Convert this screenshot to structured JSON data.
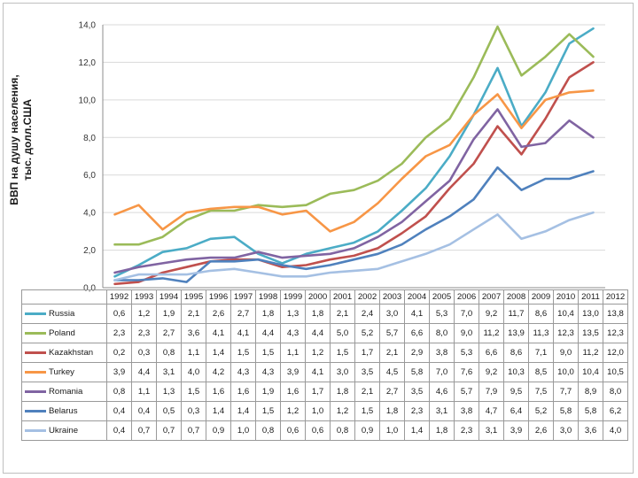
{
  "chart_data": {
    "type": "line",
    "title": "",
    "ylabel": "ВВП на душу населения, тыс. долл.США",
    "ylabel_lines": [
      "ВВП на душу населения,",
      "тыс. долл.США"
    ],
    "ylim": [
      0,
      14
    ],
    "yticks": [
      "0,0",
      "2,0",
      "4,0",
      "6,0",
      "8,0",
      "10,0",
      "12,0",
      "14,0"
    ],
    "grid": true,
    "legend": "table-below",
    "categories": [
      "1992",
      "1993",
      "1994",
      "1995",
      "1996",
      "1997",
      "1998",
      "1999",
      "2000",
      "2001",
      "2002",
      "2003",
      "2004",
      "2005",
      "2006",
      "2007",
      "2008",
      "2009",
      "2010",
      "2011",
      "2012"
    ],
    "series": [
      {
        "name": "Russia",
        "color": "#4bacc6",
        "values": [
          0.6,
          1.2,
          1.9,
          2.1,
          2.6,
          2.7,
          1.8,
          1.3,
          1.8,
          2.1,
          2.4,
          3.0,
          4.1,
          5.3,
          7.0,
          9.2,
          11.7,
          8.6,
          10.4,
          13.0,
          13.8
        ],
        "labels": [
          "0,6",
          "1,2",
          "1,9",
          "2,1",
          "2,6",
          "2,7",
          "1,8",
          "1,3",
          "1,8",
          "2,1",
          "2,4",
          "3,0",
          "4,1",
          "5,3",
          "7,0",
          "9,2",
          "11,7",
          "8,6",
          "10,4",
          "13,0",
          "13,8"
        ]
      },
      {
        "name": "Poland",
        "color": "#9bbb59",
        "values": [
          2.3,
          2.3,
          2.7,
          3.6,
          4.1,
          4.1,
          4.4,
          4.3,
          4.4,
          5.0,
          5.2,
          5.7,
          6.6,
          8.0,
          9.0,
          11.2,
          13.9,
          11.3,
          12.3,
          13.5,
          12.3
        ],
        "labels": [
          "2,3",
          "2,3",
          "2,7",
          "3,6",
          "4,1",
          "4,1",
          "4,4",
          "4,3",
          "4,4",
          "5,0",
          "5,2",
          "5,7",
          "6,6",
          "8,0",
          "9,0",
          "11,2",
          "13,9",
          "11,3",
          "12,3",
          "13,5",
          "12,3"
        ]
      },
      {
        "name": "Kazakhstan",
        "color": "#c0504d",
        "values": [
          0.2,
          0.3,
          0.8,
          1.1,
          1.4,
          1.5,
          1.5,
          1.1,
          1.2,
          1.5,
          1.7,
          2.1,
          2.9,
          3.8,
          5.3,
          6.6,
          8.6,
          7.1,
          9.0,
          11.2,
          12.0
        ],
        "labels": [
          "0,2",
          "0,3",
          "0,8",
          "1,1",
          "1,4",
          "1,5",
          "1,5",
          "1,1",
          "1,2",
          "1,5",
          "1,7",
          "2,1",
          "2,9",
          "3,8",
          "5,3",
          "6,6",
          "8,6",
          "7,1",
          "9,0",
          "11,2",
          "12,0"
        ]
      },
      {
        "name": "Turkey",
        "color": "#f79646",
        "values": [
          3.9,
          4.4,
          3.1,
          4.0,
          4.2,
          4.3,
          4.3,
          3.9,
          4.1,
          3.0,
          3.5,
          4.5,
          5.8,
          7.0,
          7.6,
          9.2,
          10.3,
          8.5,
          10.0,
          10.4,
          10.5
        ],
        "labels": [
          "3,9",
          "4,4",
          "3,1",
          "4,0",
          "4,2",
          "4,3",
          "4,3",
          "3,9",
          "4,1",
          "3,0",
          "3,5",
          "4,5",
          "5,8",
          "7,0",
          "7,6",
          "9,2",
          "10,3",
          "8,5",
          "10,0",
          "10,4",
          "10,5"
        ]
      },
      {
        "name": "Romania",
        "color": "#8064a2",
        "values": [
          0.8,
          1.1,
          1.3,
          1.5,
          1.6,
          1.6,
          1.9,
          1.6,
          1.7,
          1.8,
          2.1,
          2.7,
          3.5,
          4.6,
          5.7,
          7.9,
          9.5,
          7.5,
          7.7,
          8.9,
          8.0
        ],
        "labels": [
          "0,8",
          "1,1",
          "1,3",
          "1,5",
          "1,6",
          "1,6",
          "1,9",
          "1,6",
          "1,7",
          "1,8",
          "2,1",
          "2,7",
          "3,5",
          "4,6",
          "5,7",
          "7,9",
          "9,5",
          "7,5",
          "7,7",
          "8,9",
          "8,0"
        ]
      },
      {
        "name": "Belarus",
        "color": "#4f81bd",
        "values": [
          0.4,
          0.4,
          0.5,
          0.3,
          1.4,
          1.4,
          1.5,
          1.2,
          1.0,
          1.2,
          1.5,
          1.8,
          2.3,
          3.1,
          3.8,
          4.7,
          6.4,
          5.2,
          5.8,
          5.8,
          6.2
        ],
        "labels": [
          "0,4",
          "0,4",
          "0,5",
          "0,3",
          "1,4",
          "1,4",
          "1,5",
          "1,2",
          "1,0",
          "1,2",
          "1,5",
          "1,8",
          "2,3",
          "3,1",
          "3,8",
          "4,7",
          "6,4",
          "5,2",
          "5,8",
          "5,8",
          "6,2"
        ]
      },
      {
        "name": "Ukraine",
        "color": "#a5c0e3",
        "values": [
          0.4,
          0.7,
          0.7,
          0.7,
          0.9,
          1.0,
          0.8,
          0.6,
          0.6,
          0.8,
          0.9,
          1.0,
          1.4,
          1.8,
          2.3,
          3.1,
          3.9,
          2.6,
          3.0,
          3.6,
          4.0
        ],
        "labels": [
          "0,4",
          "0,7",
          "0,7",
          "0,7",
          "0,9",
          "1,0",
          "0,8",
          "0,6",
          "0,6",
          "0,8",
          "0,9",
          "1,0",
          "1,4",
          "1,8",
          "2,3",
          "3,1",
          "3,9",
          "2,6",
          "3,0",
          "3,6",
          "4,0"
        ]
      }
    ]
  }
}
